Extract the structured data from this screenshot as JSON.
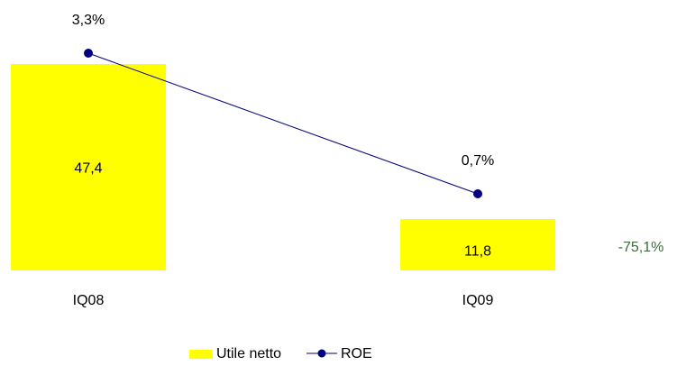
{
  "chart_data": {
    "type": "bar",
    "title": "",
    "xlabel": "",
    "ylabel": "",
    "categories": [
      "IQ08",
      "IQ09"
    ],
    "series": [
      {
        "name": "Utile netto",
        "type": "bar",
        "color": "#ffff00",
        "values": [
          47.4,
          11.8
        ],
        "labels": [
          "47,4",
          "11,8"
        ]
      },
      {
        "name": "ROE",
        "type": "line",
        "color": "#000080",
        "values": [
          3.3,
          0.7
        ],
        "labels": [
          "3,3%",
          "0,7%"
        ]
      }
    ],
    "annotations": [
      {
        "text": "-75,1%",
        "color": "#3a6e3a"
      }
    ],
    "legend_position": "bottom-center",
    "grid": false
  }
}
